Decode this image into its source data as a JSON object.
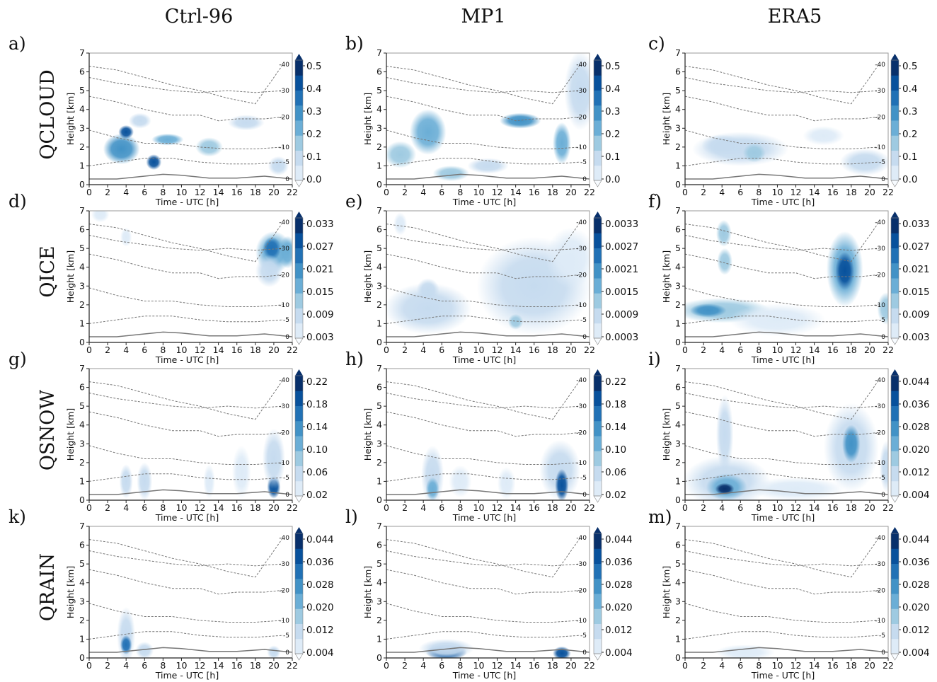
{
  "figure": {
    "columns": [
      "Ctrl-96",
      "MP1",
      "ERA5"
    ],
    "rows": [
      "QCLOUD",
      "QICE",
      "QSNOW",
      "QRAIN"
    ],
    "panel_labels": [
      [
        "a)",
        "b)",
        "c)"
      ],
      [
        "d)",
        "e)",
        "f)"
      ],
      [
        "g)",
        "h)",
        "i)"
      ],
      [
        "k)",
        "l)",
        "m)"
      ]
    ],
    "colormap": [
      "#f7fbff",
      "#deebf7",
      "#c6dbef",
      "#9ecae1",
      "#6baed6",
      "#4292c6",
      "#2171b5",
      "#08519c",
      "#08306b"
    ]
  },
  "chart_data": [
    {
      "type": "heatmap",
      "row": "QCLOUD",
      "xlabel": "Time - UTC [h]",
      "ylabel": "Height [km]",
      "xlim": [
        0,
        22
      ],
      "ylim": [
        0,
        7
      ],
      "x_ticks": [
        "0",
        "2",
        "4",
        "6",
        "8",
        "10",
        "12",
        "14",
        "16",
        "18",
        "20",
        "22"
      ],
      "y_ticks": [
        "0",
        "1",
        "2",
        "3",
        "4",
        "5",
        "6",
        "7"
      ],
      "colorbar_ticks": [
        [
          "0.5",
          "0.4",
          "0.3",
          "0.2",
          "0.1",
          "0.0"
        ],
        [
          "0.5",
          "0.4",
          "0.3",
          "0.2",
          "0.1",
          "0.0"
        ],
        [
          "0.5",
          "0.4",
          "0.3",
          "0.2",
          "0.1",
          "0.0"
        ]
      ],
      "isotherm_labels": [
        "-40",
        "-30",
        "-20",
        "-10",
        "-5",
        "0"
      ],
      "panels": [
        {
          "model": "Ctrl-96",
          "blobs": [
            {
              "t": 3.5,
              "z": 1.9,
              "w": 3.5,
              "h": 1.4,
              "v": 0.25
            },
            {
              "t": 4.0,
              "z": 2.8,
              "w": 1.2,
              "h": 0.5,
              "v": 0.45
            },
            {
              "t": 7.0,
              "z": 1.2,
              "w": 1.2,
              "h": 0.6,
              "v": 0.45
            },
            {
              "t": 8.5,
              "z": 2.4,
              "w": 3.0,
              "h": 0.4,
              "v": 0.2
            },
            {
              "t": 13.0,
              "z": 2.0,
              "w": 2.5,
              "h": 0.8,
              "v": 0.15
            },
            {
              "t": 17.0,
              "z": 3.3,
              "w": 3.5,
              "h": 0.6,
              "v": 0.06
            },
            {
              "t": 20.5,
              "z": 1.0,
              "w": 1.8,
              "h": 0.8,
              "v": 0.1
            },
            {
              "t": 5.5,
              "z": 3.4,
              "w": 2.0,
              "h": 0.6,
              "v": 0.06
            }
          ]
        },
        {
          "model": "MP1",
          "blobs": [
            {
              "t": 4.5,
              "z": 2.8,
              "w": 3.5,
              "h": 2.2,
              "v": 0.2
            },
            {
              "t": 1.5,
              "z": 1.6,
              "w": 3.0,
              "h": 1.2,
              "v": 0.15
            },
            {
              "t": 7.0,
              "z": 0.6,
              "w": 3.5,
              "h": 0.6,
              "v": 0.15
            },
            {
              "t": 14.5,
              "z": 3.4,
              "w": 4.0,
              "h": 0.6,
              "v": 0.25
            },
            {
              "t": 19.0,
              "z": 2.2,
              "w": 1.5,
              "h": 2.0,
              "v": 0.2
            },
            {
              "t": 21.0,
              "z": 5.0,
              "w": 3.0,
              "h": 4.0,
              "v": 0.05
            },
            {
              "t": 11.0,
              "z": 1.0,
              "w": 4.0,
              "h": 0.6,
              "v": 0.06
            }
          ]
        },
        {
          "model": "ERA5",
          "blobs": [
            {
              "t": 6.0,
              "z": 1.9,
              "w": 10.0,
              "h": 1.6,
              "v": 0.06
            },
            {
              "t": 4.0,
              "z": 2.1,
              "w": 4.0,
              "h": 0.9,
              "v": 0.1
            },
            {
              "t": 7.5,
              "z": 1.7,
              "w": 2.0,
              "h": 0.8,
              "v": 0.12
            },
            {
              "t": 19.5,
              "z": 1.2,
              "w": 5.0,
              "h": 1.2,
              "v": 0.04
            },
            {
              "t": 15.0,
              "z": 2.6,
              "w": 4.0,
              "h": 0.8,
              "v": 0.03
            }
          ]
        }
      ]
    },
    {
      "type": "heatmap",
      "row": "QICE",
      "xlabel": "Time - UTC [h]",
      "ylabel": "Height [km]",
      "xlim": [
        0,
        22
      ],
      "ylim": [
        0,
        7
      ],
      "x_ticks": [
        "0",
        "2",
        "4",
        "6",
        "8",
        "10",
        "12",
        "14",
        "16",
        "18",
        "20",
        "22"
      ],
      "y_ticks": [
        "0",
        "1",
        "2",
        "3",
        "4",
        "5",
        "6",
        "7"
      ],
      "colorbar_ticks": [
        [
          "0.033",
          "0.027",
          "0.021",
          "0.015",
          "0.009",
          "0.003"
        ],
        [
          "0.0033",
          "0.0027",
          "0.0021",
          "0.0015",
          "0.0009",
          "0.0003"
        ],
        [
          "0.033",
          "0.027",
          "0.021",
          "0.015",
          "0.009",
          "0.003"
        ]
      ],
      "isotherm_labels": [
        "-40",
        "-30",
        "-20",
        "-10",
        "-5",
        "0"
      ],
      "panels": [
        {
          "model": "Ctrl-96",
          "blobs": [
            {
              "t": 20.0,
              "z": 4.8,
              "w": 3.5,
              "h": 2.0,
              "v": 0.018
            },
            {
              "t": 19.8,
              "z": 5.0,
              "w": 1.5,
              "h": 1.0,
              "v": 0.026
            },
            {
              "t": 21.5,
              "z": 4.8,
              "w": 1.5,
              "h": 1.5,
              "v": 0.015
            },
            {
              "t": 19.5,
              "z": 3.8,
              "w": 2.5,
              "h": 1.5,
              "v": 0.006
            },
            {
              "t": 1.2,
              "z": 6.8,
              "w": 1.5,
              "h": 0.6,
              "v": 0.005
            },
            {
              "t": 4.0,
              "z": 5.6,
              "w": 0.8,
              "h": 0.8,
              "v": 0.004
            }
          ]
        },
        {
          "model": "MP1",
          "blobs": [
            {
              "t": 16.0,
              "z": 3.0,
              "w": 12.0,
              "h": 5.0,
              "v": 0.0006
            },
            {
              "t": 20.0,
              "z": 4.5,
              "w": 5.0,
              "h": 3.0,
              "v": 0.0005
            },
            {
              "t": 4.5,
              "z": 1.8,
              "w": 9.0,
              "h": 2.5,
              "v": 0.0006
            },
            {
              "t": 1.5,
              "z": 6.3,
              "w": 1.0,
              "h": 1.0,
              "v": 0.0005
            },
            {
              "t": 4.5,
              "z": 2.8,
              "w": 2.0,
              "h": 1.0,
              "v": 0.0009
            },
            {
              "t": 14.0,
              "z": 1.1,
              "w": 1.2,
              "h": 0.6,
              "v": 0.001
            }
          ]
        },
        {
          "model": "ERA5",
          "blobs": [
            {
              "t": 4.0,
              "z": 1.7,
              "w": 10.0,
              "h": 1.1,
              "v": 0.012
            },
            {
              "t": 2.5,
              "z": 1.7,
              "w": 3.5,
              "h": 0.5,
              "v": 0.02
            },
            {
              "t": 17.3,
              "z": 3.9,
              "w": 3.5,
              "h": 3.8,
              "v": 0.014
            },
            {
              "t": 17.3,
              "z": 3.8,
              "w": 1.6,
              "h": 1.8,
              "v": 0.03
            },
            {
              "t": 4.2,
              "z": 5.8,
              "w": 1.2,
              "h": 1.2,
              "v": 0.012
            },
            {
              "t": 4.3,
              "z": 4.3,
              "w": 1.2,
              "h": 1.2,
              "v": 0.01
            },
            {
              "t": 10.0,
              "z": 1.2,
              "w": 10.0,
              "h": 1.5,
              "v": 0.004
            },
            {
              "t": 21.8,
              "z": 1.8,
              "w": 1.5,
              "h": 1.5,
              "v": 0.012
            }
          ]
        }
      ]
    },
    {
      "type": "heatmap",
      "row": "QSNOW",
      "xlabel": "Time - UTC [h]",
      "ylabel": "Height [km]",
      "xlim": [
        0,
        22
      ],
      "ylim": [
        0,
        7
      ],
      "x_ticks": [
        "0",
        "2",
        "4",
        "6",
        "8",
        "10",
        "12",
        "14",
        "16",
        "18",
        "20",
        "22"
      ],
      "y_ticks": [
        "0",
        "1",
        "2",
        "3",
        "4",
        "5",
        "6",
        "7"
      ],
      "colorbar_ticks": [
        [
          "0.22",
          "0.18",
          "0.14",
          "0.10",
          "0.06",
          "0.02"
        ],
        [
          "0.22",
          "0.18",
          "0.14",
          "0.10",
          "0.06",
          "0.02"
        ],
        [
          "0.044",
          "0.036",
          "0.028",
          "0.020",
          "0.012",
          "0.004"
        ]
      ],
      "isotherm_labels": [
        "-40",
        "-30",
        "-20",
        "-10",
        "-5",
        "0"
      ],
      "panels": [
        {
          "model": "Ctrl-96",
          "blobs": [
            {
              "t": 20.0,
              "z": 0.7,
              "w": 1.0,
              "h": 1.0,
              "v": 0.18
            },
            {
              "t": 20.0,
              "z": 2.2,
              "w": 2.0,
              "h": 3.0,
              "v": 0.05
            },
            {
              "t": 4.0,
              "z": 1.0,
              "w": 1.0,
              "h": 1.6,
              "v": 0.04
            },
            {
              "t": 6.0,
              "z": 1.0,
              "w": 1.2,
              "h": 1.8,
              "v": 0.04
            },
            {
              "t": 16.5,
              "z": 1.5,
              "w": 1.6,
              "h": 2.6,
              "v": 0.03
            },
            {
              "t": 13.0,
              "z": 1.0,
              "w": 0.8,
              "h": 1.6,
              "v": 0.025
            }
          ]
        },
        {
          "model": "MP1",
          "blobs": [
            {
              "t": 5.0,
              "z": 1.3,
              "w": 2.0,
              "h": 3.0,
              "v": 0.06
            },
            {
              "t": 5.0,
              "z": 0.6,
              "w": 1.0,
              "h": 1.0,
              "v": 0.12
            },
            {
              "t": 18.8,
              "z": 1.6,
              "w": 4.0,
              "h": 3.0,
              "v": 0.04
            },
            {
              "t": 19.0,
              "z": 0.8,
              "w": 1.0,
              "h": 1.5,
              "v": 0.18
            },
            {
              "t": 8.0,
              "z": 1.0,
              "w": 2.0,
              "h": 1.5,
              "v": 0.03
            },
            {
              "t": 13.0,
              "z": 0.9,
              "w": 1.5,
              "h": 1.5,
              "v": 0.03
            }
          ]
        },
        {
          "model": "ERA5",
          "blobs": [
            {
              "t": 4.5,
              "z": 1.0,
              "w": 9.0,
              "h": 2.5,
              "v": 0.01
            },
            {
              "t": 4.5,
              "z": 0.7,
              "w": 4.0,
              "h": 1.2,
              "v": 0.022
            },
            {
              "t": 4.3,
              "z": 0.6,
              "w": 1.6,
              "h": 0.4,
              "v": 0.042
            },
            {
              "t": 4.3,
              "z": 3.5,
              "w": 1.4,
              "h": 4.0,
              "v": 0.008
            },
            {
              "t": 18.0,
              "z": 2.8,
              "w": 5.5,
              "h": 4.5,
              "v": 0.012
            },
            {
              "t": 18.0,
              "z": 3.0,
              "w": 1.5,
              "h": 1.8,
              "v": 0.026
            },
            {
              "t": 12.0,
              "z": 0.6,
              "w": 10.0,
              "h": 1.0,
              "v": 0.006
            },
            {
              "t": 21.8,
              "z": 1.8,
              "w": 1.0,
              "h": 2.5,
              "v": 0.008
            }
          ]
        }
      ]
    },
    {
      "type": "heatmap",
      "row": "QRAIN",
      "xlabel": "Time - UTC [h]",
      "ylabel": "Height [km]",
      "xlim": [
        0,
        22
      ],
      "ylim": [
        0,
        7
      ],
      "x_ticks": [
        "0",
        "2",
        "4",
        "6",
        "8",
        "10",
        "12",
        "14",
        "16",
        "18",
        "20",
        "22"
      ],
      "y_ticks": [
        "0",
        "1",
        "2",
        "3",
        "4",
        "5",
        "6",
        "7"
      ],
      "colorbar_ticks": [
        [
          "0.044",
          "0.036",
          "0.028",
          "0.020",
          "0.012",
          "0.004"
        ],
        [
          "0.044",
          "0.036",
          "0.028",
          "0.020",
          "0.012",
          "0.004"
        ],
        [
          "0.044",
          "0.036",
          "0.028",
          "0.020",
          "0.012",
          "0.004"
        ]
      ],
      "isotherm_labels": [
        "-40",
        "-30",
        "-20",
        "-10",
        "-5",
        "0"
      ],
      "panels": [
        {
          "model": "Ctrl-96",
          "blobs": [
            {
              "t": 4.0,
              "z": 1.2,
              "w": 1.5,
              "h": 2.8,
              "v": 0.012
            },
            {
              "t": 4.0,
              "z": 0.7,
              "w": 0.8,
              "h": 0.8,
              "v": 0.03
            },
            {
              "t": 6.0,
              "z": 0.4,
              "w": 1.5,
              "h": 0.7,
              "v": 0.008
            },
            {
              "t": 20.0,
              "z": 0.3,
              "w": 1.0,
              "h": 0.5,
              "v": 0.01
            }
          ]
        },
        {
          "model": "MP1",
          "blobs": [
            {
              "t": 6.5,
              "z": 0.3,
              "w": 4.0,
              "h": 0.6,
              "v": 0.036
            },
            {
              "t": 19.0,
              "z": 0.25,
              "w": 1.5,
              "h": 0.5,
              "v": 0.04
            },
            {
              "t": 6.5,
              "z": 0.5,
              "w": 5.5,
              "h": 0.8,
              "v": 0.008
            }
          ]
        },
        {
          "model": "ERA5",
          "blobs": [
            {
              "t": 6.5,
              "z": 0.3,
              "w": 6.0,
              "h": 0.6,
              "v": 0.006
            }
          ]
        }
      ]
    }
  ]
}
